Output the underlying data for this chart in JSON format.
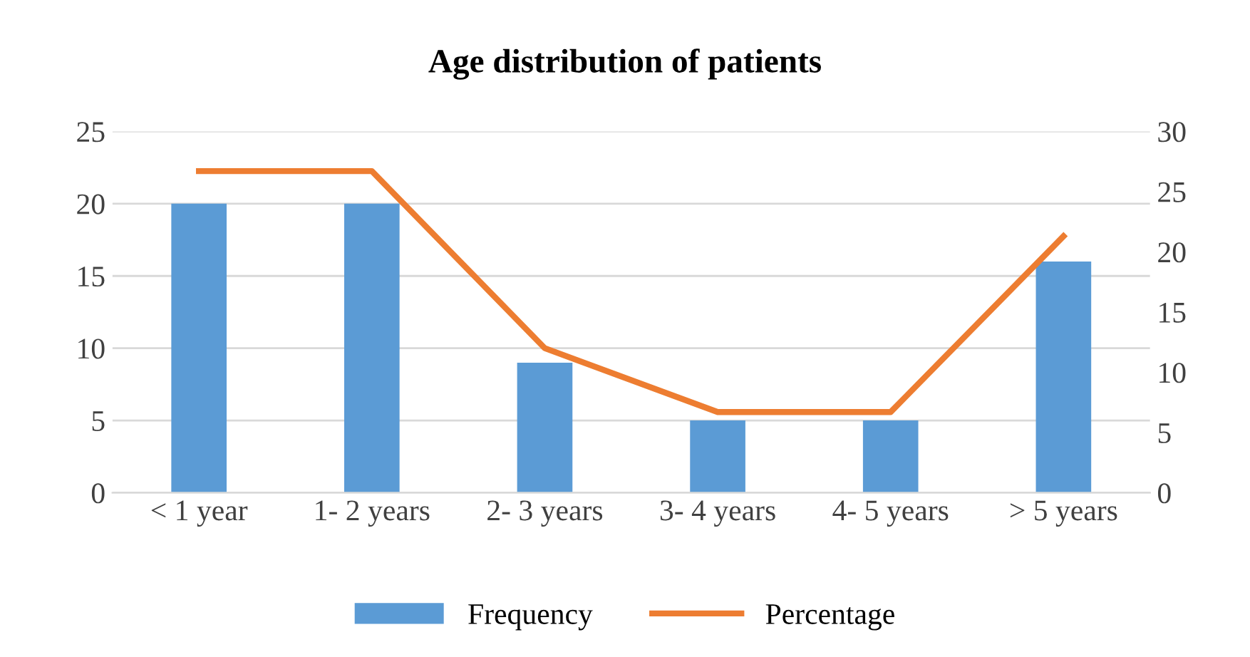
{
  "chart_data": {
    "type": "bar",
    "title": "Age distribution of patients",
    "categories": [
      "< 1 year",
      "1- 2 years",
      "2- 3 years",
      "3- 4 years",
      "4- 5 years",
      "> 5 years"
    ],
    "series": [
      {
        "name": "Frequency",
        "color": "#5b9bd5",
        "values": [
          20,
          20,
          9,
          5,
          5,
          16
        ]
      },
      {
        "name": "Percentage",
        "type": "line",
        "axis": "y2",
        "color": "#ed7d31",
        "values": [
          26.7,
          26.7,
          12,
          6.7,
          6.7,
          21.3
        ]
      }
    ],
    "ylim": [
      0,
      25
    ],
    "yticks": [
      0,
      5,
      10,
      15,
      20,
      25
    ],
    "y2lim": [
      0,
      30
    ],
    "y2ticks": [
      0,
      5,
      10,
      15,
      20,
      25,
      30
    ],
    "grid": "y",
    "legend": "bottom"
  }
}
